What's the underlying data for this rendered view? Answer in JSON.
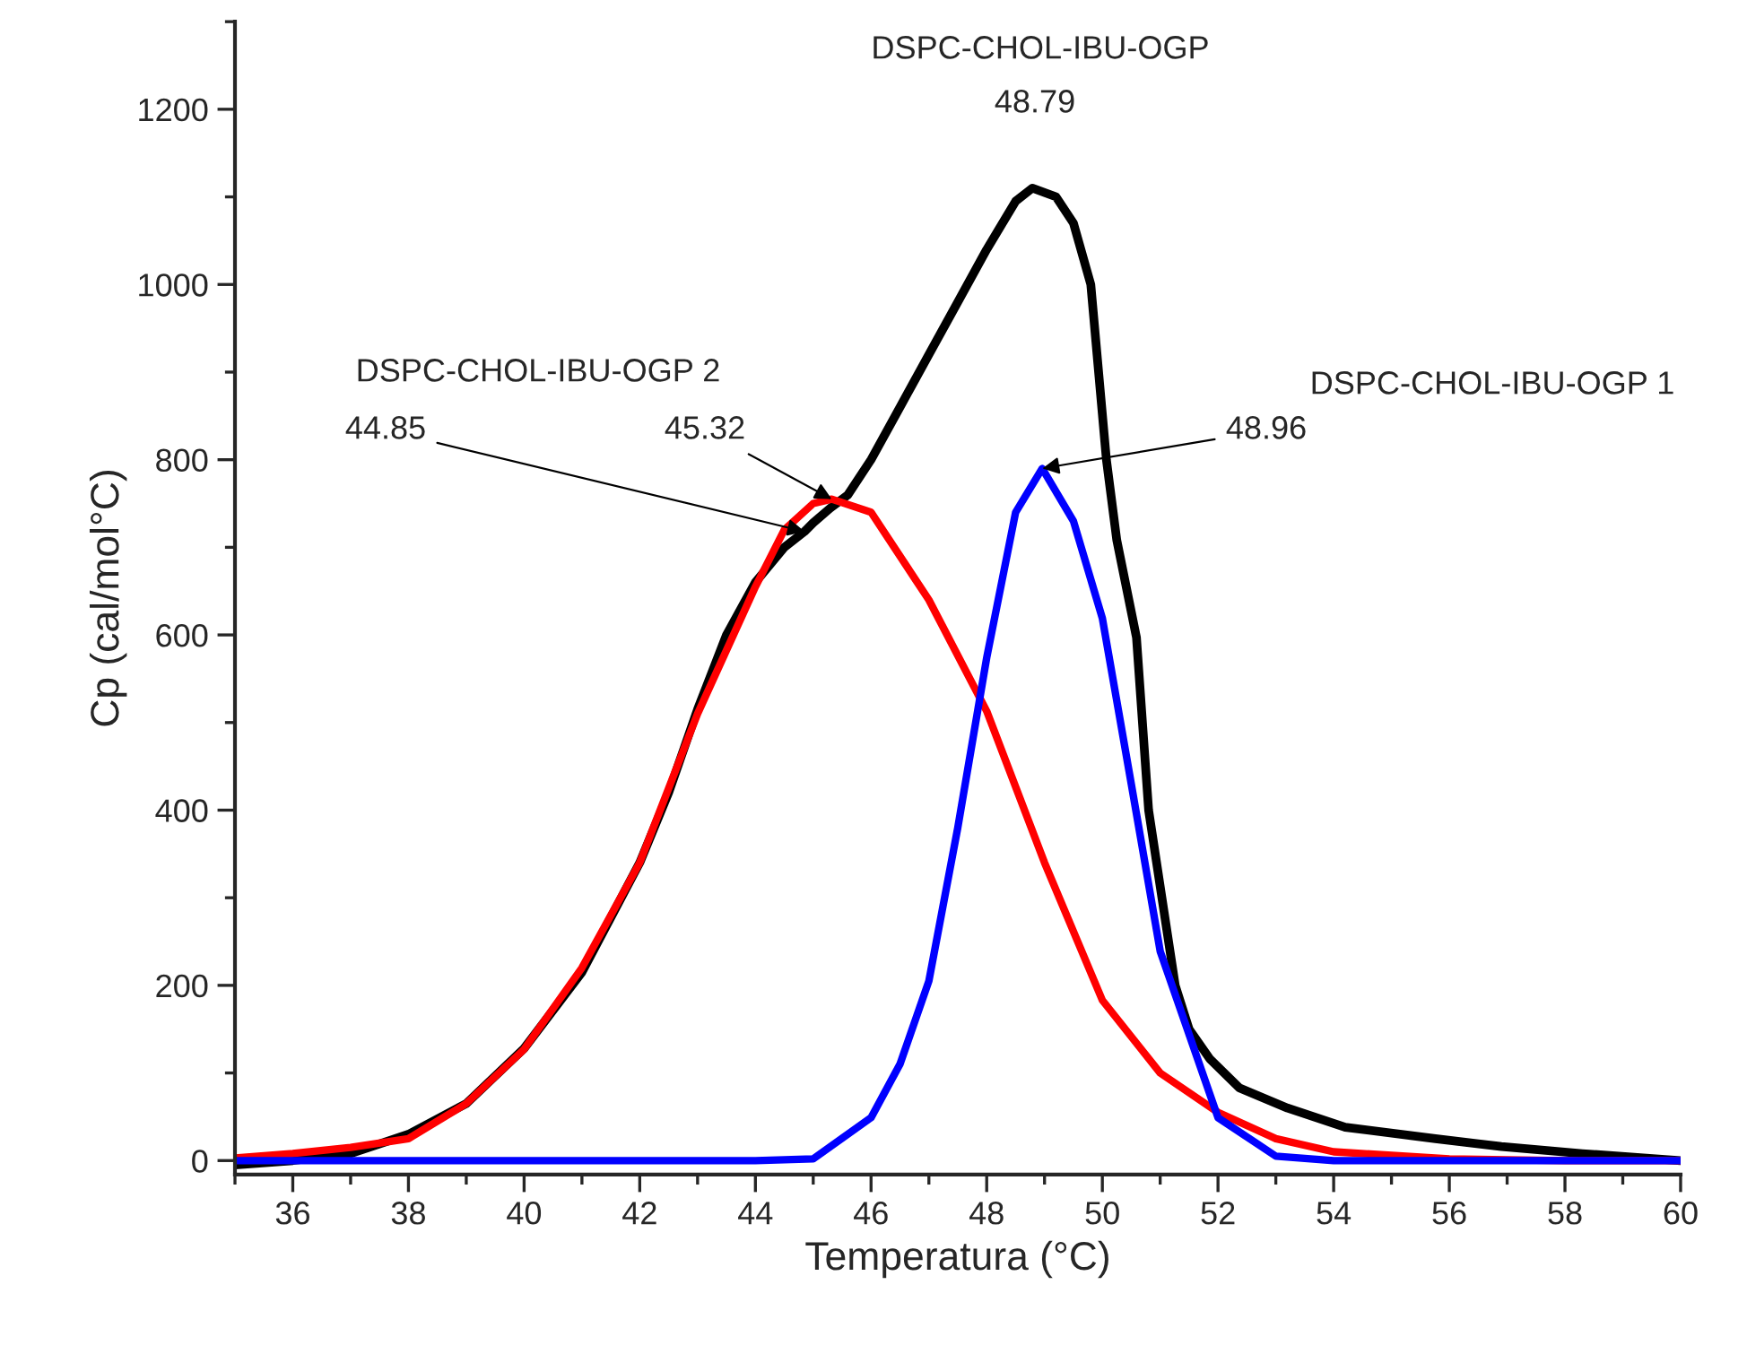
{
  "chart_data": {
    "type": "line",
    "xlabel": "Temperatura (°C)",
    "ylabel": "Cp (cal/mol°C)",
    "xlim": [
      35,
      60
    ],
    "ylim": [
      -16,
      1300
    ],
    "xticks": [
      36,
      38,
      40,
      42,
      44,
      46,
      48,
      50,
      52,
      54,
      56,
      58,
      60
    ],
    "yticks": [
      0,
      200,
      400,
      600,
      800,
      1000,
      1200
    ],
    "grid": false,
    "legend": false,
    "line_style": "solid",
    "marker": "none",
    "series": [
      {
        "color": "#000000",
        "x": [
          35,
          36,
          37,
          38,
          39,
          40,
          41,
          42,
          42.5,
          43,
          43.5,
          44,
          44.5,
          44.85,
          45,
          45.3,
          45.6,
          46,
          46.5,
          47,
          47.5,
          48,
          48.5,
          48.79,
          49.2,
          49.5,
          49.8,
          50.07,
          50.25,
          50.59,
          50.8,
          51.26,
          51.5,
          51.86,
          52.37,
          53.2,
          54.2,
          55.76,
          56.9,
          58.3,
          60
        ],
        "values": [
          -5,
          0,
          8,
          30,
          65,
          128,
          215,
          340,
          420,
          515,
          600,
          660,
          700,
          718,
          728,
          745,
          760,
          800,
          860,
          920,
          980,
          1040,
          1095,
          1110,
          1100,
          1070,
          1000,
          800,
          708,
          597,
          400,
          200,
          150,
          116,
          83,
          60,
          38,
          25,
          16,
          8,
          0
        ]
      },
      {
        "color": "#ff0000",
        "x": [
          35,
          36,
          37,
          38,
          39,
          40,
          41,
          42,
          43,
          44,
          44.5,
          45,
          45.32,
          46,
          47,
          48,
          49,
          50,
          51,
          52,
          53,
          54,
          56,
          58,
          60
        ],
        "values": [
          3,
          8,
          15,
          25,
          65,
          127,
          220,
          340,
          510,
          655,
          720,
          750,
          755,
          740,
          640,
          513,
          340,
          183,
          100,
          55,
          25,
          10,
          2,
          0,
          0
        ]
      },
      {
        "color": "#0000ff",
        "x": [
          35,
          44,
          45,
          46,
          46.5,
          47,
          47.5,
          48,
          48.5,
          48.96,
          49.5,
          50,
          50.5,
          51,
          52,
          53,
          54,
          60
        ],
        "values": [
          0,
          0,
          2,
          49,
          110,
          205,
          380,
          574,
          740,
          790,
          730,
          619,
          430,
          239,
          49,
          5,
          0,
          0
        ]
      }
    ],
    "annotations": [
      "DSPC-CHOL-IBU-OGP",
      {
        "text": "48.79",
        "x": 48.79,
        "y": 1110
      },
      "DSPC-CHOL-IBU-OGP 2",
      {
        "text": "44.85",
        "x": 44.85,
        "y": 718
      },
      {
        "text": "45.32",
        "x": 45.32,
        "y": 755
      },
      "DSPC-CHOL-IBU-OGP 1",
      {
        "text": "48.96",
        "x": 48.96,
        "y": 790
      }
    ]
  }
}
